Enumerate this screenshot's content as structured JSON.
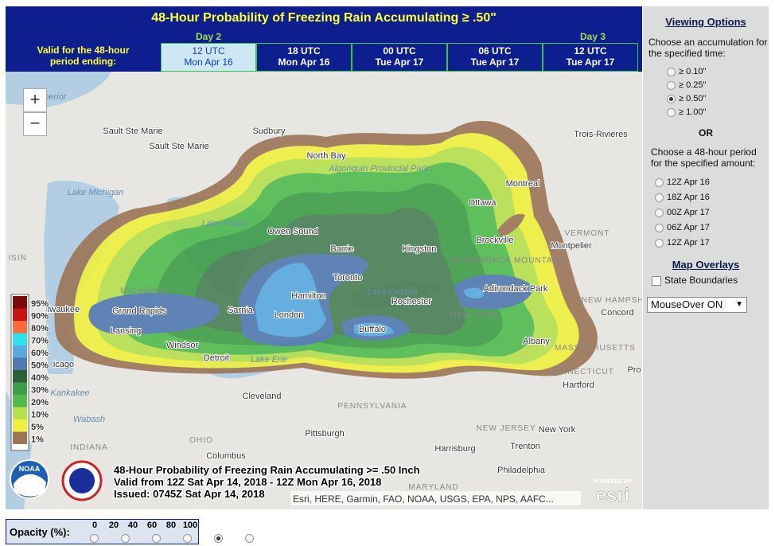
{
  "header": {
    "title": "48-Hour Probability of Freezing Rain Accumulating ≥ .50\"",
    "day_labels": [
      "Day 2",
      "Day 3"
    ],
    "valid_label": "Valid for the 48-hour period ending:",
    "tabs": [
      {
        "time": "12 UTC",
        "date": "Mon Apr 16"
      },
      {
        "time": "18 UTC",
        "date": "Mon Apr 16"
      },
      {
        "time": "00 UTC",
        "date": "Tue Apr 17"
      },
      {
        "time": "06 UTC",
        "date": "Tue Apr 17"
      },
      {
        "time": "12 UTC",
        "date": "Tue Apr 17"
      }
    ]
  },
  "map": {
    "zoom_in": "+",
    "zoom_out": "−",
    "legend": [
      "95%",
      "90%",
      "80%",
      "70%",
      "60%",
      "50%",
      "40%",
      "30%",
      "20%",
      "10%",
      "5%",
      "1%"
    ],
    "place_labels": [
      "e Superior",
      "Sault Ste Marie",
      "Sault Ste Marie",
      "Sudbury",
      "North Bay",
      "Algonquin Provincial Park",
      "Ottawa",
      "Montreal",
      "Trois-Rivieres",
      "Lake Michigan",
      "Lake Huron",
      "Owen Sound",
      "Barrie",
      "Kingston",
      "Brockville",
      "VERMONT",
      "Montpelier",
      "ADIRONDACK MOUNTAINS",
      "Adirondack Park",
      "NEW HAMPSHIRE",
      "Concord",
      "MICHIGAN",
      "Grand Rapids",
      "Lansing",
      "Sarnia",
      "London",
      "Hamilton",
      "Toronto",
      "Lake Ontario",
      "Rochester",
      "Buffalo",
      "NEW YORK",
      "Albany",
      "MASSACHUSETTS",
      "Windsor",
      "Detroit",
      "Lake Erie",
      "ISIN",
      "lwaukee",
      "icago",
      "Kankakee",
      "Wabash",
      "INDIANA",
      "OHIO",
      "Columbus",
      "Cleveland",
      "PENNSYLVANIA",
      "Pittsburgh",
      "Harrisburg",
      "Trenton",
      "NEW JERSEY",
      "New York",
      "Philadelphia",
      "CONNECTICUT",
      "Hartford",
      "Pro",
      "MARYLAND"
    ],
    "caption": [
      "48-Hour Probability of Freezing Rain Accumulating >= .50 Inch",
      "Valid from 12Z Sat Apr 14, 2018 - 12Z Mon Apr 16, 2018",
      "Issued: 0745Z Sat Apr 14, 2018"
    ],
    "attribution": "Esri, HERE, Garmin, FAO, NOAA, USGS, EPA, NPS, AAFC...",
    "noaa": "NOAA",
    "esri_powered": "POWERED BY",
    "esri": "esri"
  },
  "panel": {
    "title": "Viewing Options",
    "accumulation_prompt": "Choose an accumulation for the specified time:",
    "accumulations": [
      "≥ 0.10\"",
      "≥ 0.25\"",
      "≥ 0.50\"",
      "≥ 1.00\""
    ],
    "or": "OR",
    "period_prompt": "Choose a 48-hour period for the specified amount:",
    "periods": [
      "12Z Apr 16",
      "18Z Apr 16",
      "00Z Apr 17",
      "06Z Apr 17",
      "12Z Apr 17"
    ],
    "overlays_title": "Map Overlays",
    "overlay": "State Boundaries",
    "mouseover": "MouseOver ON"
  },
  "opacity": {
    "label": "Opacity (%):",
    "options": [
      "0",
      "20",
      "40",
      "60",
      "80",
      "100"
    ]
  }
}
